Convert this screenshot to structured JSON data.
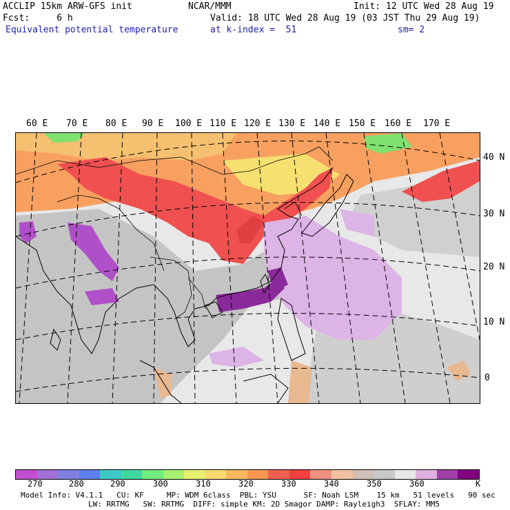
{
  "header": {
    "line1_left": "ACCLIP 15km ARW-GFS init",
    "line1_mid": "NCAR/MMM",
    "line1_right": "Init: 12 UTC Wed 28 Aug 19",
    "line2_left": "Fcst:     6 h",
    "line2_right": "Valid: 18 UTC Wed 28 Aug 19 (03 JST Thu 29 Aug 19)",
    "line3_left": "Equivalent potential temperature",
    "line3_mid": "at k-index =  51",
    "line3_right": "sm= 2"
  },
  "map": {
    "lon_labels": [
      "60 E",
      "70 E",
      "80 E",
      "90 E",
      "100 E",
      "110 E",
      "120 E",
      "130 E",
      "140 E",
      "150 E",
      "160 E",
      "170 E"
    ],
    "lat_labels": [
      "40 N",
      "30 N",
      "20 N",
      "10 N",
      "0"
    ],
    "colors": {
      "land_gray": "#c4c4c4",
      "ocean_light": "#e8e8e8",
      "hot_red": "#f05050",
      "orange": "#f7a060",
      "yellow": "#f5e070",
      "green": "#80e070",
      "purple_light": "#dcb4e6",
      "purple_mid": "#b050c8",
      "purple_dark": "#8a2a9a",
      "tan": "#e8b890"
    }
  },
  "colorbar": {
    "colors": [
      "#c050d0",
      "#a070d8",
      "#8080e0",
      "#6080f0",
      "#40c8c8",
      "#40d8a0",
      "#70ec80",
      "#a8f070",
      "#e8f070",
      "#f8d870",
      "#f8b860",
      "#f89850",
      "#f06050",
      "#f04040",
      "#f09080",
      "#f0c0a0",
      "#d0c0b8",
      "#c8c8c8",
      "#e8e8e8",
      "#e0b0e0",
      "#a040a8",
      "#800080"
    ],
    "ticks": [
      "270",
      "280",
      "290",
      "300",
      "310",
      "320",
      "330",
      "340",
      "350",
      "360"
    ],
    "unit": "K"
  },
  "footer": {
    "line1": "Model Info: V4.1.1   CU: KF     MP: WDM 6class  PBL: YSU      SF: Noah LSM    15 km   51 levels   90 sec",
    "line2": "LW: RRTMG   SW: RRTMG  DIFF: simple KM: 2D Smagor DAMP: Rayleigh3  SFLAY: MM5"
  }
}
